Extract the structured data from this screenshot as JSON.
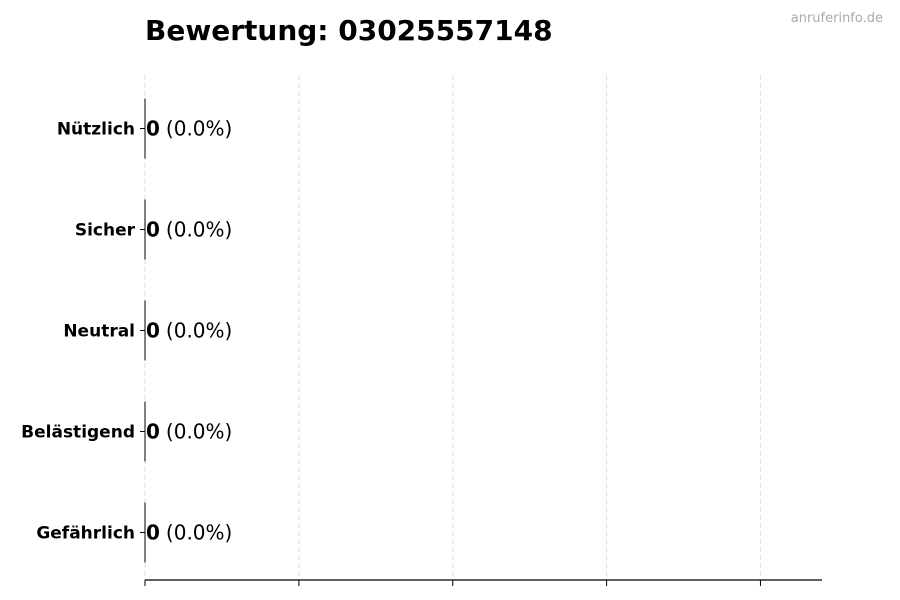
{
  "chart_data": {
    "type": "bar",
    "orientation": "horizontal",
    "title": "Bewertung: 03025557148",
    "watermark": "anruferinfo.de",
    "categories": [
      "Nützlich",
      "Sicher",
      "Neutral",
      "Belästigend",
      "Gefährlich"
    ],
    "values": [
      0,
      0,
      0,
      0,
      0
    ],
    "labels": [
      {
        "count": "0",
        "percent": "(0.0%)"
      },
      {
        "count": "0",
        "percent": "(0.0%)"
      },
      {
        "count": "0",
        "percent": "(0.0%)"
      },
      {
        "count": "0",
        "percent": "(0.0%)"
      },
      {
        "count": "0",
        "percent": "(0.0%)"
      }
    ],
    "xlabel": "",
    "ylabel": "",
    "xlim": [
      0,
      4.4
    ],
    "xticks": [
      0,
      1,
      2,
      3,
      4
    ],
    "xtick_labels_shown": false,
    "grid": "x, dashed",
    "colors": {
      "grid": "#dddddd",
      "bar_edge": "#000000",
      "watermark": "#aaaaaa"
    }
  }
}
